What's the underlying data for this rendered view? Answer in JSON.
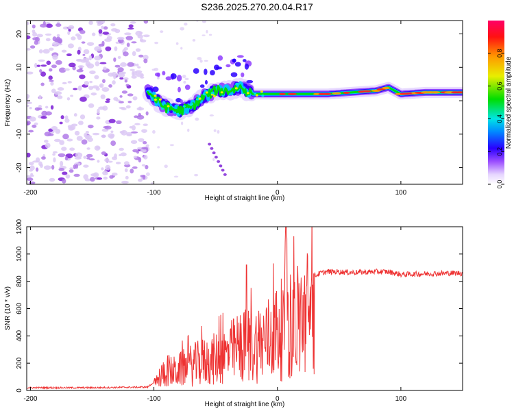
{
  "title": "S236.2025.270.20.04.R17",
  "chart_data": [
    {
      "type": "heatmap",
      "xlabel": "Height of straight line (km)",
      "ylabel": "Frequency (Hz)",
      "xlim": [
        -203,
        150
      ],
      "ylim": [
        -25,
        24
      ],
      "xticks": [
        -200,
        -100,
        0,
        100
      ],
      "yticks": [
        -20,
        -10,
        0,
        10,
        20
      ],
      "trace": [
        {
          "x": -105,
          "y": 3
        },
        {
          "x": -95,
          "y": -1
        },
        {
          "x": -90,
          "y": -2
        },
        {
          "x": -80,
          "y": -3
        },
        {
          "x": -70,
          "y": -2
        },
        {
          "x": -60,
          "y": 1
        },
        {
          "x": -50,
          "y": 3
        },
        {
          "x": -40,
          "y": 3
        },
        {
          "x": -30,
          "y": 4
        },
        {
          "x": -20,
          "y": 2
        },
        {
          "x": 0,
          "y": 2
        },
        {
          "x": 20,
          "y": 2
        },
        {
          "x": 40,
          "y": 2
        },
        {
          "x": 60,
          "y": 2.5
        },
        {
          "x": 80,
          "y": 3
        },
        {
          "x": 90,
          "y": 4
        },
        {
          "x": 100,
          "y": 2
        },
        {
          "x": 120,
          "y": 2.5
        },
        {
          "x": 150,
          "y": 2.5
        }
      ],
      "colorbar": {
        "label": "Normalized spectral amplitude",
        "range": [
          0,
          1
        ],
        "ticks": [
          "0.0",
          "0.2",
          "0.4",
          "0.6",
          "0.8"
        ]
      }
    },
    {
      "type": "line",
      "xlabel": "Height of straight line (km)",
      "ylabel": "SNR (10 * v/v)",
      "xlim": [
        -203,
        150
      ],
      "ylim": [
        0,
        1200
      ],
      "xticks": [
        -200,
        -100,
        0,
        100
      ],
      "yticks": [
        0,
        200,
        400,
        600,
        800,
        1000,
        1200
      ],
      "color": "#ee3333",
      "series": [
        {
          "name": "SNR",
          "x": [
            -203,
            -150,
            -105,
            -100,
            -95,
            -90,
            -85,
            -80,
            -75,
            -70,
            -65,
            -60,
            -55,
            -50,
            -45,
            -40,
            -35,
            -30,
            -25,
            -20,
            -15,
            -10,
            -5,
            0,
            5,
            7,
            10,
            15,
            20,
            25,
            30,
            35,
            40,
            50,
            60,
            80,
            90,
            100,
            120,
            140,
            150
          ],
          "values": [
            20,
            20,
            25,
            60,
            140,
            220,
            190,
            210,
            240,
            260,
            280,
            300,
            310,
            330,
            350,
            380,
            420,
            460,
            470,
            470,
            500,
            520,
            560,
            620,
            640,
            700,
            680,
            720,
            780,
            820,
            840,
            860,
            870,
            870,
            865,
            870,
            870,
            850,
            855,
            860,
            860
          ]
        }
      ]
    }
  ]
}
